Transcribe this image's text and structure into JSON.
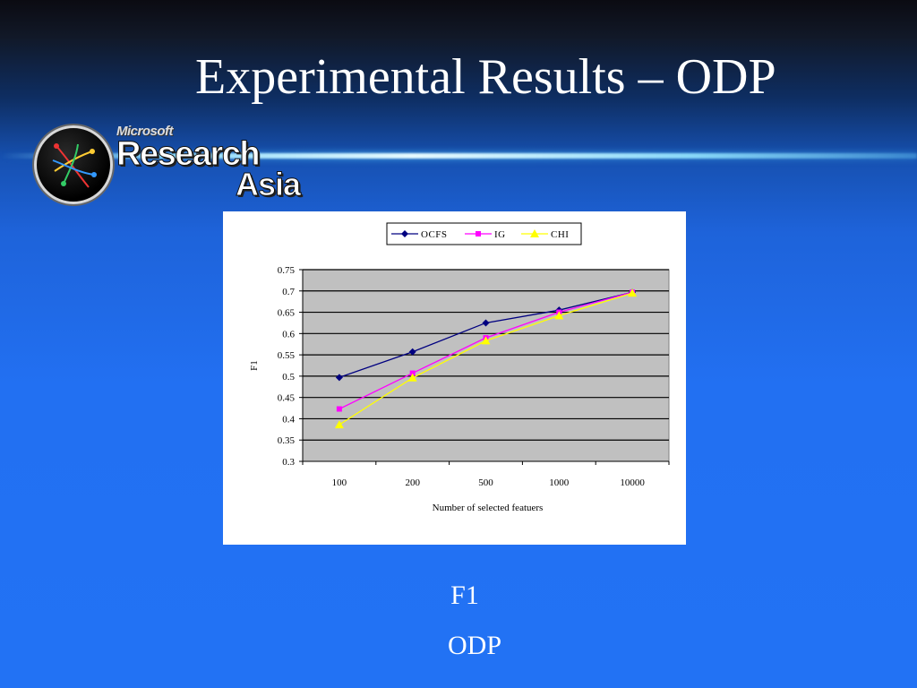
{
  "slide": {
    "title": "Experimental Results – ODP",
    "caption_line1": "F1",
    "caption_line2": "ODP"
  },
  "logo": {
    "microsoft": "Microsoft",
    "research": "Research",
    "asia": "Asia"
  },
  "chart_data": {
    "type": "line",
    "title": "",
    "xlabel": "Number of selected featuers",
    "ylabel": "F1",
    "categories": [
      "100",
      "200",
      "500",
      "1000",
      "10000"
    ],
    "ylim": [
      0.3,
      0.75
    ],
    "yticks": [
      "0.75",
      "0.7",
      "0.65",
      "0.6",
      "0.55",
      "0.5",
      "0.45",
      "0.4",
      "0.35",
      "0.3"
    ],
    "grid": true,
    "legend_position": "top",
    "plot_background": "#c0c0c0",
    "series": [
      {
        "name": "OCFS",
        "color": "#000080",
        "marker": "diamond",
        "values": [
          0.497,
          0.557,
          0.625,
          0.655,
          0.697
        ]
      },
      {
        "name": "IG",
        "color": "#ff00ff",
        "marker": "square",
        "values": [
          0.423,
          0.507,
          0.59,
          0.65,
          0.697
        ]
      },
      {
        "name": "CHI",
        "color": "#ffff00",
        "marker": "triangle",
        "values": [
          0.386,
          0.496,
          0.583,
          0.642,
          0.695
        ]
      }
    ]
  }
}
